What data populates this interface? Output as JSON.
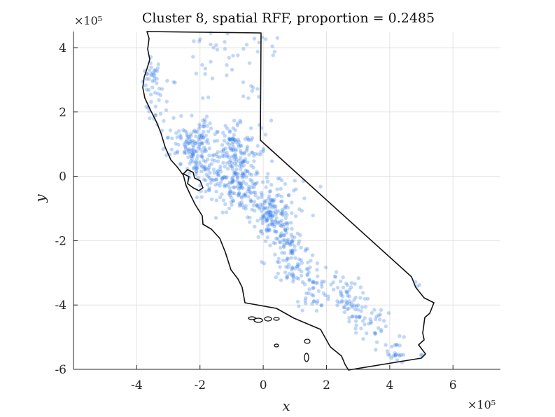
{
  "chart_data": {
    "type": "scatter",
    "title": "Cluster 8, spatial RFF, proportion = 0.2485",
    "xlabel": "x",
    "ylabel": "y",
    "x_exponent_label": "×10⁵",
    "y_exponent_label": "×10⁵",
    "xlim": [
      -6,
      7.5
    ],
    "ylim": [
      -6,
      4.5
    ],
    "x_ticks": [
      -4,
      -2,
      0,
      2,
      4,
      6
    ],
    "y_ticks": [
      -6,
      -4,
      -2,
      0,
      2,
      4
    ],
    "x_tick_labels": [
      "-4",
      "-2",
      "0",
      "2",
      "4",
      "6"
    ],
    "y_tick_labels": [
      "-6",
      "-4",
      "-2",
      "0",
      "2",
      "4"
    ],
    "grid": true,
    "legend": "none",
    "point_color": "#1f6fe8",
    "outline_color": "#111111",
    "units": "x10^5 (spatial coordinates)",
    "clusters": [
      {
        "cx": -3.5,
        "cy": 3.1,
        "sx": 0.15,
        "sy": 0.3,
        "n": 30
      },
      {
        "cx": -3.2,
        "cy": 2.2,
        "sx": 0.25,
        "sy": 0.5,
        "n": 25
      },
      {
        "cx": -1.6,
        "cy": 3.8,
        "sx": 0.55,
        "sy": 0.5,
        "n": 30
      },
      {
        "cx": 0.0,
        "cy": 4.0,
        "sx": 0.3,
        "sy": 0.35,
        "n": 12
      },
      {
        "cx": -0.4,
        "cy": 2.6,
        "sx": 0.2,
        "sy": 0.15,
        "n": 8
      },
      {
        "cx": -2.4,
        "cy": 1.1,
        "sx": 0.35,
        "sy": 0.3,
        "n": 70
      },
      {
        "cx": -1.9,
        "cy": 1.3,
        "sx": 0.2,
        "sy": 0.5,
        "n": 40
      },
      {
        "cx": -1.0,
        "cy": 0.8,
        "sx": 0.3,
        "sy": 0.4,
        "n": 100
      },
      {
        "cx": -1.6,
        "cy": -0.1,
        "sx": 0.25,
        "sy": 0.3,
        "n": 40
      },
      {
        "cx": -2.1,
        "cy": 0.4,
        "sx": 0.25,
        "sy": 0.3,
        "n": 50
      },
      {
        "cx": -0.7,
        "cy": -0.4,
        "sx": 0.35,
        "sy": 0.35,
        "n": 110
      },
      {
        "cx": 0.2,
        "cy": -1.3,
        "sx": 0.3,
        "sy": 0.35,
        "n": 110
      },
      {
        "cx": 0.8,
        "cy": -2.1,
        "sx": 0.25,
        "sy": 0.35,
        "n": 60
      },
      {
        "cx": 0.9,
        "cy": -2.9,
        "sx": 0.2,
        "sy": 0.2,
        "n": 25
      },
      {
        "cx": 1.6,
        "cy": -3.6,
        "sx": 0.25,
        "sy": 0.3,
        "n": 35
      },
      {
        "cx": 2.6,
        "cy": -3.9,
        "sx": 0.3,
        "sy": 0.25,
        "n": 45
      },
      {
        "cx": 3.3,
        "cy": -4.5,
        "sx": 0.3,
        "sy": 0.25,
        "n": 40
      },
      {
        "cx": 4.1,
        "cy": -5.5,
        "sx": 0.25,
        "sy": 0.25,
        "n": 25
      },
      {
        "cx": 2.6,
        "cy": -3.3,
        "sx": 0.3,
        "sy": 0.2,
        "n": 15
      },
      {
        "cx": -0.5,
        "cy": 0.5,
        "sx": 0.45,
        "sy": 0.6,
        "n": 60
      },
      {
        "cx": 0.5,
        "cy": -0.8,
        "sx": 0.5,
        "sy": 0.4,
        "n": 50
      },
      {
        "cx": 1.3,
        "cy": -2.8,
        "sx": 0.45,
        "sy": 0.35,
        "n": 30
      },
      {
        "cx": 4.9,
        "cy": -3.4,
        "sx": 0.05,
        "sy": 0.05,
        "n": 3
      },
      {
        "cx": 5.0,
        "cy": -5.6,
        "sx": 0.05,
        "sy": 0.05,
        "n": 2
      }
    ]
  }
}
